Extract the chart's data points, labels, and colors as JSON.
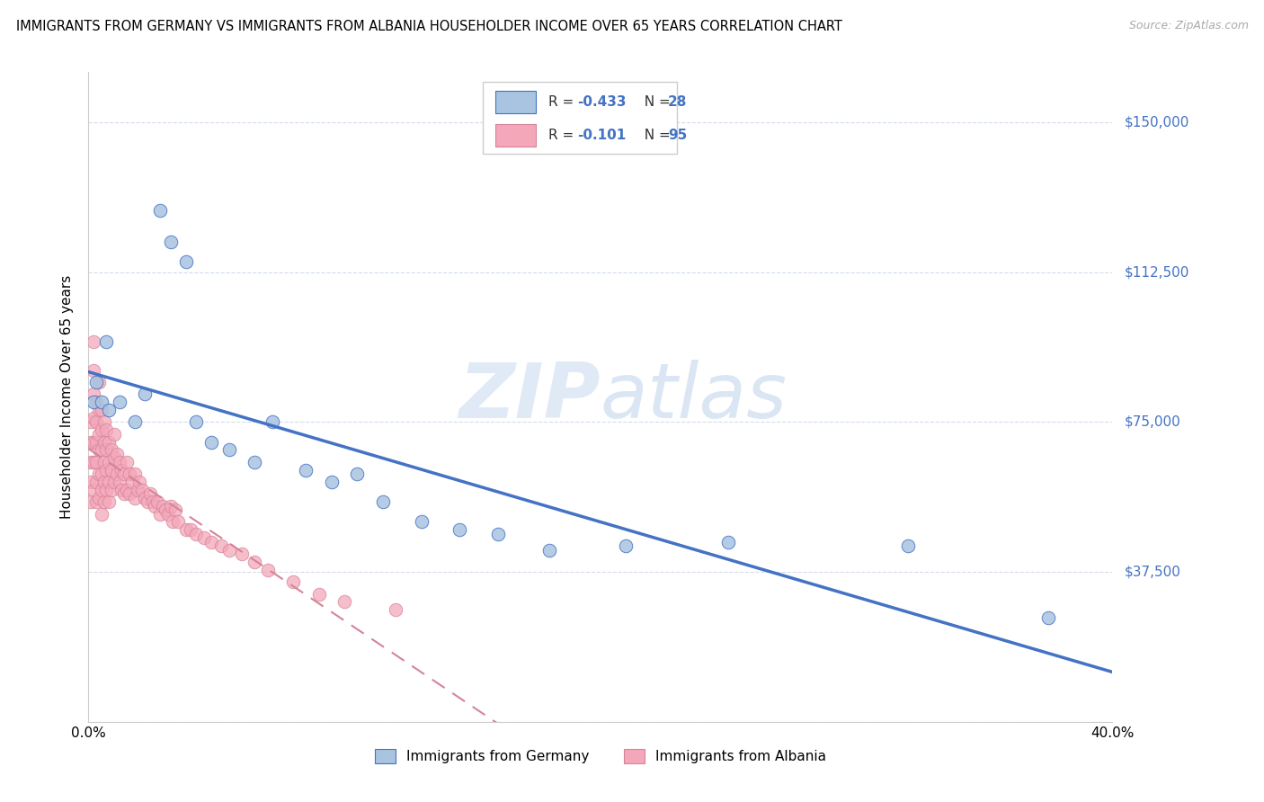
{
  "title": "IMMIGRANTS FROM GERMANY VS IMMIGRANTS FROM ALBANIA HOUSEHOLDER INCOME OVER 65 YEARS CORRELATION CHART",
  "source": "Source: ZipAtlas.com",
  "ylabel": "Householder Income Over 65 years",
  "xlim": [
    0.0,
    0.4
  ],
  "ylim": [
    0,
    162500
  ],
  "yticks": [
    0,
    37500,
    75000,
    112500,
    150000
  ],
  "ytick_labels": [
    "",
    "$37,500",
    "$75,000",
    "$112,500",
    "$150,000"
  ],
  "background_color": "#ffffff",
  "color_germany": "#a8c4e0",
  "color_albania": "#f4a7b9",
  "line_color_germany": "#4472c4",
  "line_color_albania": "#d4849a",
  "legend_R_germany": "-0.433",
  "legend_N_germany": "28",
  "legend_R_albania": "-0.101",
  "legend_N_albania": "95",
  "germany_x": [
    0.002,
    0.003,
    0.005,
    0.007,
    0.008,
    0.012,
    0.018,
    0.022,
    0.028,
    0.032,
    0.038,
    0.042,
    0.048,
    0.055,
    0.065,
    0.072,
    0.085,
    0.095,
    0.105,
    0.115,
    0.13,
    0.145,
    0.16,
    0.18,
    0.21,
    0.25,
    0.32,
    0.375
  ],
  "germany_y": [
    80000,
    85000,
    80000,
    95000,
    78000,
    80000,
    75000,
    82000,
    128000,
    120000,
    115000,
    75000,
    70000,
    68000,
    65000,
    75000,
    63000,
    60000,
    62000,
    55000,
    50000,
    48000,
    47000,
    43000,
    44000,
    45000,
    44000,
    26000
  ],
  "albania_x": [
    0.001,
    0.001,
    0.001,
    0.001,
    0.001,
    0.002,
    0.002,
    0.002,
    0.002,
    0.002,
    0.002,
    0.002,
    0.003,
    0.003,
    0.003,
    0.003,
    0.003,
    0.003,
    0.004,
    0.004,
    0.004,
    0.004,
    0.004,
    0.004,
    0.005,
    0.005,
    0.005,
    0.005,
    0.005,
    0.005,
    0.006,
    0.006,
    0.006,
    0.006,
    0.006,
    0.007,
    0.007,
    0.007,
    0.007,
    0.008,
    0.008,
    0.008,
    0.008,
    0.009,
    0.009,
    0.009,
    0.01,
    0.01,
    0.01,
    0.011,
    0.011,
    0.012,
    0.012,
    0.013,
    0.013,
    0.014,
    0.014,
    0.015,
    0.015,
    0.016,
    0.016,
    0.017,
    0.018,
    0.018,
    0.019,
    0.02,
    0.021,
    0.022,
    0.023,
    0.024,
    0.025,
    0.026,
    0.027,
    0.028,
    0.029,
    0.03,
    0.031,
    0.032,
    0.033,
    0.034,
    0.035,
    0.038,
    0.04,
    0.042,
    0.045,
    0.048,
    0.052,
    0.055,
    0.06,
    0.065,
    0.07,
    0.08,
    0.09,
    0.1,
    0.12
  ],
  "albania_y": [
    75000,
    70000,
    65000,
    60000,
    55000,
    95000,
    88000,
    82000,
    76000,
    70000,
    65000,
    58000,
    80000,
    75000,
    70000,
    65000,
    60000,
    55000,
    85000,
    78000,
    72000,
    68000,
    62000,
    56000,
    78000,
    73000,
    68000,
    62000,
    58000,
    52000,
    75000,
    70000,
    65000,
    60000,
    55000,
    73000,
    68000,
    63000,
    58000,
    70000,
    65000,
    60000,
    55000,
    68000,
    63000,
    58000,
    72000,
    66000,
    60000,
    67000,
    62000,
    65000,
    60000,
    63000,
    58000,
    62000,
    57000,
    65000,
    58000,
    62000,
    57000,
    60000,
    62000,
    56000,
    58000,
    60000,
    58000,
    56000,
    55000,
    57000,
    55000,
    54000,
    55000,
    52000,
    54000,
    53000,
    52000,
    54000,
    50000,
    53000,
    50000,
    48000,
    48000,
    47000,
    46000,
    45000,
    44000,
    43000,
    42000,
    40000,
    38000,
    35000,
    32000,
    30000,
    28000
  ]
}
